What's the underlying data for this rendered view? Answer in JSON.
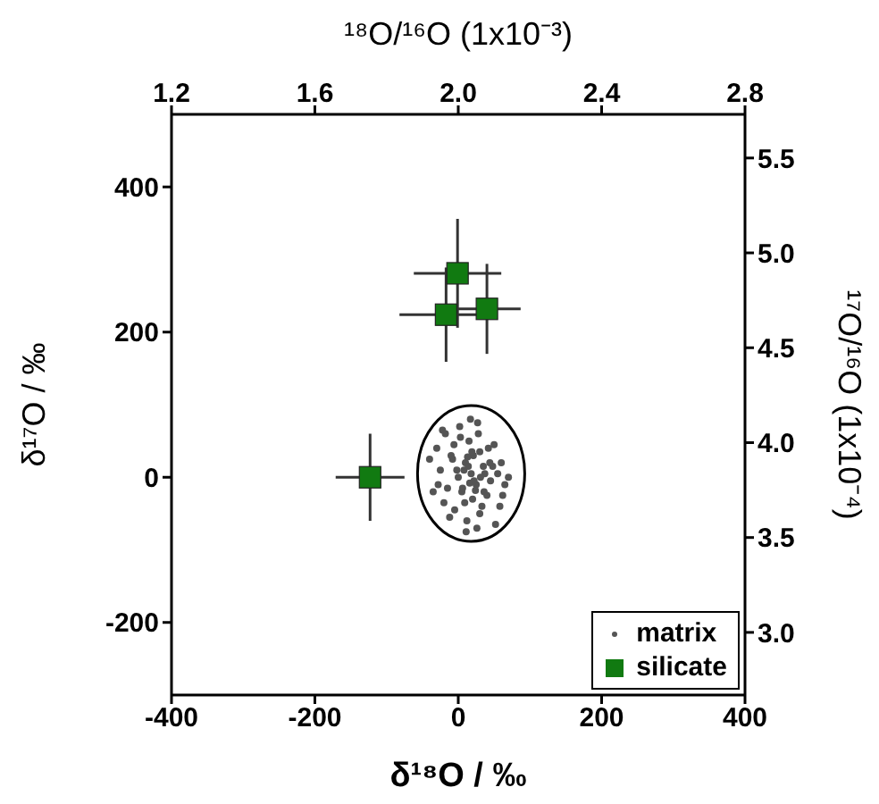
{
  "chart_data": {
    "type": "scatter",
    "xlabel": "δ¹⁸O / ‰",
    "ylabel": "δ¹⁷O / ‰",
    "x2label": "¹⁸O/¹⁶O (1x10⁻³)",
    "y2label": "¹⁷O/¹⁶O (1x10⁻⁴)",
    "xlim": [
      -400,
      400
    ],
    "xticks": [
      -400,
      -200,
      0,
      200,
      400
    ],
    "ylim": [
      -300,
      500
    ],
    "yticks": [
      -200,
      0,
      200,
      400
    ],
    "x2lim": [
      1.2,
      2.8
    ],
    "x2ticks": [
      1.2,
      1.6,
      {
        "value": 2,
        "label": "2.0"
      },
      2.4,
      {
        "value": 2.8,
        "label": "2.8"
      }
    ],
    "y2lim": [
      2.67,
      5.73
    ],
    "y2ticks": [
      {
        "value": 3,
        "label": "3.0"
      },
      3.5,
      {
        "value": 4,
        "label": "4.0"
      },
      4.5,
      {
        "value": 5,
        "label": "5.0"
      },
      5.5
    ],
    "legend": "bottom right",
    "grid": false,
    "series": [
      {
        "name": "matrix",
        "color": "#555555",
        "marker": "circle",
        "x": [
          18,
          10,
          25,
          0,
          35,
          -10,
          45,
          20,
          5,
          30,
          -25,
          55,
          15,
          -5,
          40,
          12,
          28,
          -15,
          60,
          8,
          22,
          -30,
          50,
          2,
          33,
          -20,
          65,
          17,
          -8,
          42,
          26,
          -35,
          48,
          11,
          3,
          37,
          -12,
          58,
          21,
          -22,
          30,
          14,
          -40,
          70,
          6,
          24,
          -2,
          52,
          19,
          -18,
          36,
          9,
          44,
          -28,
          27,
          16,
          -6,
          62,
          31,
          13
        ],
        "values": [
          5,
          20,
          -10,
          0,
          15,
          30,
          -5,
          -30,
          -20,
          35,
          10,
          5,
          50,
          -45,
          -25,
          -60,
          60,
          -15,
          20,
          10,
          -5,
          40,
          45,
          70,
          -40,
          -35,
          -10,
          80,
          25,
          40,
          -70,
          -20,
          15,
          -75,
          55,
          5,
          -55,
          -40,
          30,
          65,
          -50,
          15,
          25,
          0,
          -15,
          -18,
          10,
          -65,
          35,
          60,
          -20,
          -35,
          20,
          -10,
          75,
          -8,
          45,
          -25,
          0,
          28
        ]
      },
      {
        "name": "silicate",
        "color": "#117a11",
        "marker": "square",
        "x": [
          -123,
          -1,
          -17,
          40
        ],
        "values": [
          0,
          281,
          224,
          232
        ],
        "xerrors": [
          48,
          61,
          65,
          47
        ],
        "errors": [
          60,
          75,
          65,
          62
        ]
      }
    ]
  }
}
